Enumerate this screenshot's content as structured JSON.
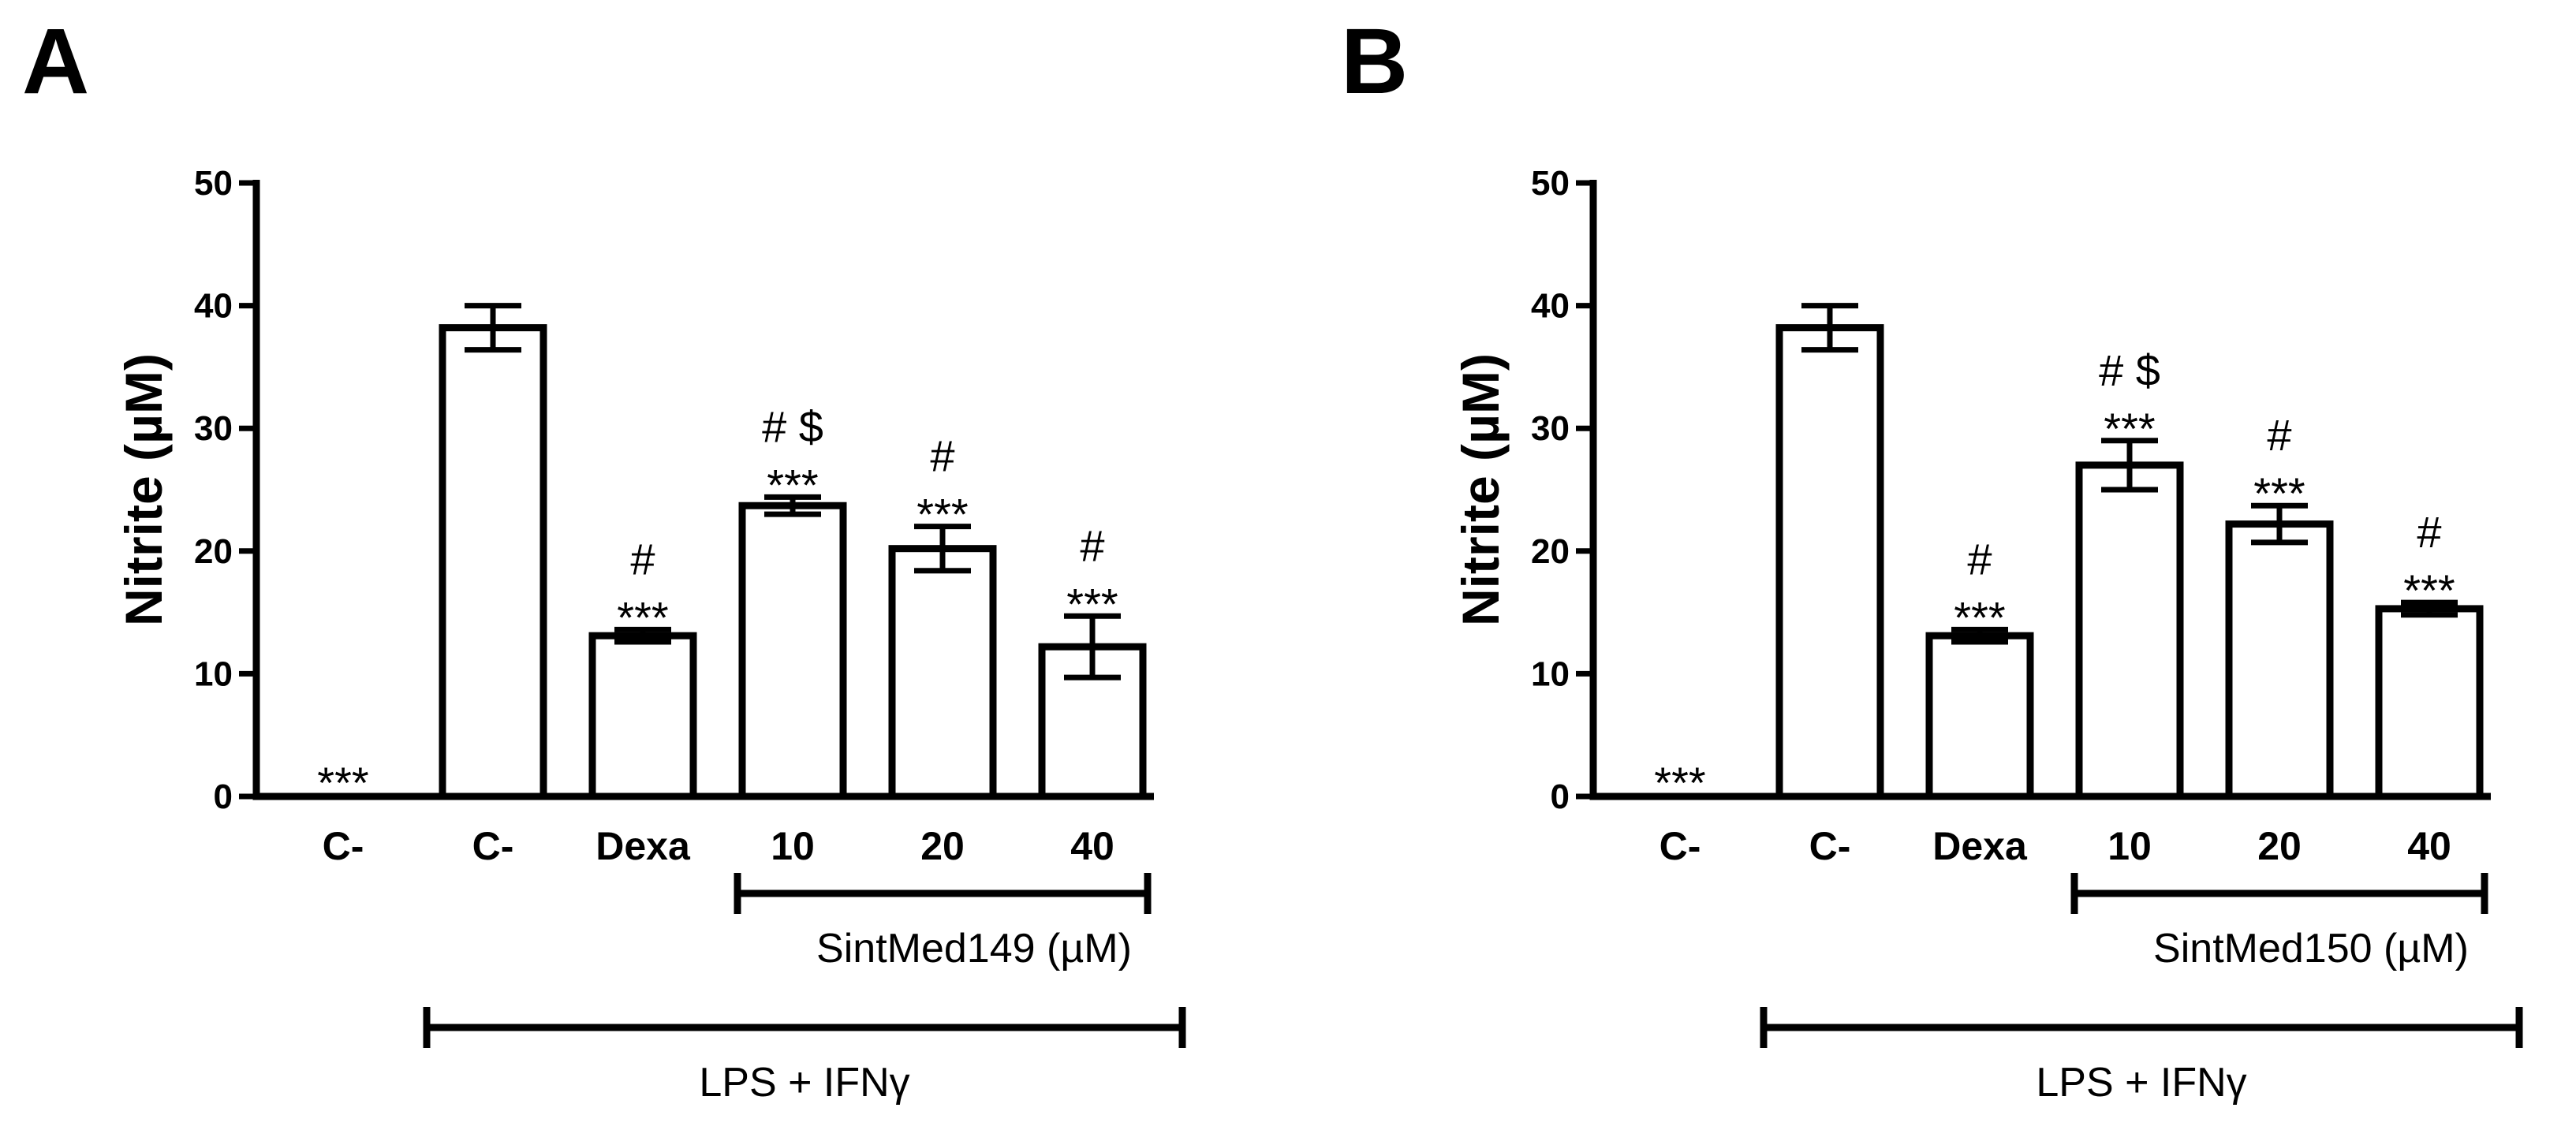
{
  "chart_data": [
    {
      "panel": "A",
      "type": "bar",
      "ylabel": "Nitrite (µM)",
      "ylim": [
        0,
        50
      ],
      "yticks": [
        "0",
        "10",
        "20",
        "30",
        "40",
        "50"
      ],
      "categories": [
        "C-",
        "C-",
        "Dexa",
        "10",
        "20",
        "40"
      ],
      "values": [
        0,
        38.2,
        13.1,
        23.7,
        20.2,
        12.2
      ],
      "errors": [
        0,
        1.8,
        0.5,
        0.7,
        1.8,
        2.5
      ],
      "annotations": [
        {
          "category_index": 0,
          "lines": [
            "***"
          ]
        },
        {
          "category_index": 2,
          "lines": [
            "#",
            "***"
          ]
        },
        {
          "category_index": 3,
          "lines": [
            "# $",
            "***"
          ]
        },
        {
          "category_index": 4,
          "lines": [
            "#",
            "***"
          ]
        },
        {
          "category_index": 5,
          "lines": [
            "#",
            "***"
          ]
        }
      ],
      "treatment_bracket": {
        "label": "SintMed149 (µM)",
        "from_index": 3,
        "to_index": 5
      },
      "stimulus_bracket": {
        "label": "LPS  + IFNγ",
        "from_index": 1,
        "to_index": 5
      }
    },
    {
      "panel": "B",
      "type": "bar",
      "ylabel": "Nitrite (µM)",
      "ylim": [
        0,
        50
      ],
      "yticks": [
        "0",
        "10",
        "20",
        "30",
        "40",
        "50"
      ],
      "categories": [
        "C-",
        "C-",
        "Dexa",
        "10",
        "20",
        "40"
      ],
      "values": [
        0,
        38.2,
        13.1,
        27.0,
        22.2,
        15.3
      ],
      "errors": [
        0,
        1.8,
        0.5,
        2.0,
        1.5,
        0.5
      ],
      "annotations": [
        {
          "category_index": 0,
          "lines": [
            "***"
          ]
        },
        {
          "category_index": 2,
          "lines": [
            "#",
            "***"
          ]
        },
        {
          "category_index": 3,
          "lines": [
            "# $",
            "***"
          ]
        },
        {
          "category_index": 4,
          "lines": [
            "#",
            "***"
          ]
        },
        {
          "category_index": 5,
          "lines": [
            "#",
            "***"
          ]
        }
      ],
      "treatment_bracket": {
        "label": "SintMed150 (µM)",
        "from_index": 3,
        "to_index": 5
      },
      "stimulus_bracket": {
        "label": "LPS  + IFNγ",
        "from_index": 1,
        "to_index": 5
      }
    }
  ]
}
